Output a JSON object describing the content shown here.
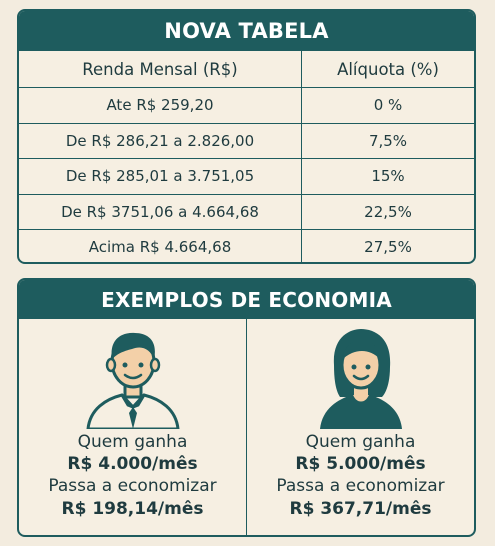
{
  "table_panel": {
    "title": "NOVA TABELA",
    "headers": [
      "Renda Mensal (R$)",
      "Alíquota (%)"
    ],
    "rows": [
      {
        "income": "Ate R$ 259,20",
        "rate": "0 %"
      },
      {
        "income": "De R$ 286,21 a 2.826,00",
        "rate": "7,5%"
      },
      {
        "income": "De R$ 285,01 a 3.751,05",
        "rate": "15%"
      },
      {
        "income": "De R$ 3751,06 a 4.664,68",
        "rate": "22,5%"
      },
      {
        "income": "Acima R$ 4.664,68",
        "rate": "27,5%"
      }
    ]
  },
  "examples_panel": {
    "title": "EXEMPLOS DE ECONOMIA",
    "examples": [
      {
        "icon": "man-avatar-icon",
        "line1": "Quem ganha",
        "line2": "R$ 4.000/mês",
        "line3": "Passa a economizar",
        "line4": "R$ 198,14/mês"
      },
      {
        "icon": "woman-avatar-icon",
        "line1": "Quem ganha",
        "line2": "R$ 5.000/mês",
        "line3": "Passa a economizar",
        "line4": "R$ 367,71/mês"
      }
    ]
  },
  "colors": {
    "primary": "#1e5c5e",
    "background": "#f3ecdf",
    "skin": "#f3d0a8"
  }
}
